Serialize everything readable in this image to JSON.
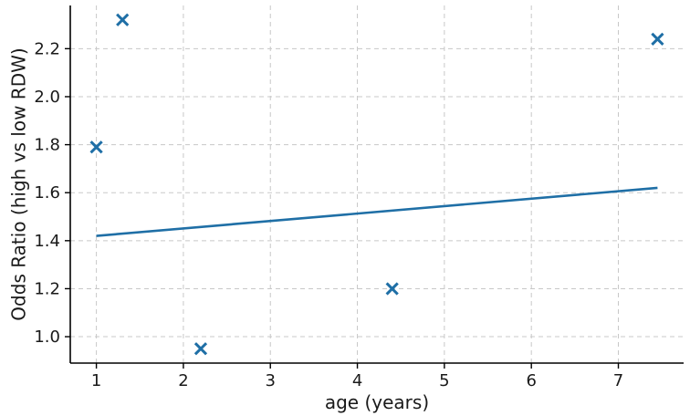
{
  "chart_data": {
    "type": "scatter",
    "xlabel": "age (years)",
    "ylabel": "Odds Ratio (high vs low RDW)",
    "xlim": [
      0.7,
      7.75
    ],
    "ylim": [
      0.89,
      2.38
    ],
    "xticks": [
      1,
      2,
      3,
      4,
      5,
      6,
      7
    ],
    "yticks": [
      1.0,
      1.2,
      1.4,
      1.6,
      1.8,
      2.0,
      2.2
    ],
    "ytick_labels": [
      "1.0",
      "1.2",
      "1.4",
      "1.6",
      "1.8",
      "2.0",
      "2.2"
    ],
    "grid": true,
    "color": "#1f6fa6",
    "points": [
      {
        "x": 1.0,
        "y": 1.79
      },
      {
        "x": 1.3,
        "y": 2.32
      },
      {
        "x": 2.2,
        "y": 0.95
      },
      {
        "x": 4.4,
        "y": 1.2
      },
      {
        "x": 7.45,
        "y": 2.24
      }
    ],
    "trend_line": {
      "x": [
        1.0,
        7.45
      ],
      "y": [
        1.42,
        1.62
      ]
    }
  }
}
